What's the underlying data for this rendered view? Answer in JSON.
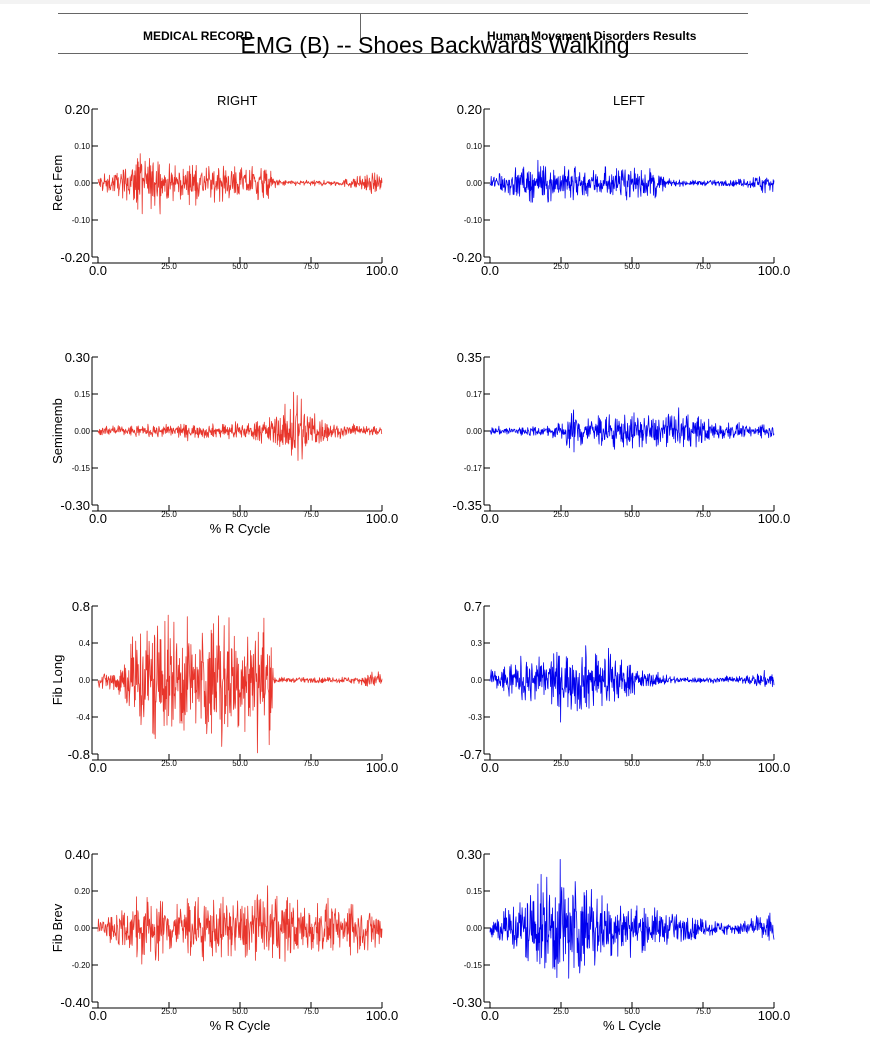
{
  "header": {
    "left_text": "MEDICAL RECORD",
    "right_text": "Human Movement Disorders Results",
    "title": "EMG (B) -- Shoes Backwards Walking"
  },
  "columns": {
    "right": "RIGHT",
    "left": "LEFT"
  },
  "colors": {
    "right": "#e8352b",
    "left": "#0000ee"
  },
  "chart_data": [
    {
      "type": "line",
      "side": "RIGHT",
      "ylabel": "Rect Fem",
      "xlabel": "",
      "xlim": [
        0,
        100
      ],
      "ylim": [
        -0.2,
        0.2
      ],
      "xticks": [
        "0.0",
        "25.0",
        "50.0",
        "75.0",
        "100.0"
      ],
      "yticks": [
        "0.20",
        "0.10",
        "0.00",
        "-0.10",
        "-0.20"
      ],
      "envelope_x": [
        0,
        5,
        10,
        15,
        20,
        25,
        30,
        35,
        40,
        45,
        50,
        55,
        60,
        63,
        70,
        75,
        80,
        85,
        88,
        92,
        96,
        100
      ],
      "envelope_amp": [
        0.025,
        0.03,
        0.045,
        0.1,
        0.07,
        0.05,
        0.045,
        0.05,
        0.05,
        0.045,
        0.045,
        0.05,
        0.045,
        0.01,
        0.008,
        0.008,
        0.008,
        0.008,
        0.015,
        0.02,
        0.03,
        0.025
      ]
    },
    {
      "type": "line",
      "side": "LEFT",
      "ylabel": "",
      "xlabel": "",
      "xlim": [
        0,
        100
      ],
      "ylim": [
        -0.2,
        0.2
      ],
      "xticks": [
        "0.0",
        "25.0",
        "50.0",
        "75.0",
        "100.0"
      ],
      "yticks": [
        "0.20",
        "0.10",
        "0.00",
        "-0.10",
        "-0.20"
      ],
      "envelope_x": [
        0,
        5,
        10,
        15,
        20,
        25,
        30,
        35,
        40,
        45,
        50,
        55,
        58,
        62,
        70,
        75,
        80,
        85,
        88,
        92,
        96,
        100
      ],
      "envelope_amp": [
        0.025,
        0.035,
        0.045,
        0.05,
        0.055,
        0.045,
        0.05,
        0.04,
        0.045,
        0.04,
        0.045,
        0.04,
        0.05,
        0.01,
        0.008,
        0.008,
        0.008,
        0.008,
        0.012,
        0.015,
        0.03,
        0.03
      ]
    },
    {
      "type": "line",
      "side": "RIGHT",
      "ylabel": "Semimemb",
      "xlabel": "% R Cycle",
      "xlim": [
        0,
        100
      ],
      "ylim": [
        -0.3,
        0.3
      ],
      "xticks": [
        "0.0",
        "25.0",
        "50.0",
        "75.0",
        "100.0"
      ],
      "yticks": [
        "0.30",
        "0.15",
        "0.00",
        "-0.15",
        "-0.30"
      ],
      "envelope_x": [
        0,
        10,
        20,
        25,
        30,
        40,
        45,
        50,
        55,
        60,
        65,
        68,
        70,
        72,
        75,
        80,
        85,
        90,
        95,
        100
      ],
      "envelope_amp": [
        0.02,
        0.025,
        0.025,
        0.03,
        0.03,
        0.03,
        0.035,
        0.03,
        0.04,
        0.06,
        0.08,
        0.13,
        0.22,
        0.15,
        0.1,
        0.05,
        0.03,
        0.025,
        0.02,
        0.02
      ]
    },
    {
      "type": "line",
      "side": "LEFT",
      "ylabel": "",
      "xlabel": "",
      "xlim": [
        0,
        100
      ],
      "ylim": [
        -0.35,
        0.35
      ],
      "xticks": [
        "0.0",
        "25.0",
        "50.0",
        "75.0",
        "100.0"
      ],
      "yticks": [
        "0.35",
        "0.17",
        "0.00",
        "-0.17",
        "-0.35"
      ],
      "envelope_x": [
        0,
        10,
        20,
        25,
        28,
        30,
        32,
        35,
        40,
        45,
        50,
        55,
        60,
        65,
        70,
        75,
        80,
        85,
        90,
        95,
        100
      ],
      "envelope_amp": [
        0.02,
        0.025,
        0.025,
        0.05,
        0.08,
        0.14,
        0.1,
        0.07,
        0.08,
        0.09,
        0.09,
        0.08,
        0.08,
        0.09,
        0.08,
        0.07,
        0.05,
        0.04,
        0.03,
        0.03,
        0.03
      ]
    },
    {
      "type": "line",
      "side": "RIGHT",
      "ylabel": "Fib Long",
      "xlabel": "",
      "xlim": [
        0,
        100
      ],
      "ylim": [
        -0.8,
        0.8
      ],
      "xticks": [
        "0.0",
        "25.0",
        "50.0",
        "75.0",
        "100.0"
      ],
      "yticks": [
        "0.8",
        "0.4",
        "0.0",
        "-0.4",
        "-0.8"
      ],
      "envelope_x": [
        0,
        5,
        10,
        15,
        20,
        25,
        30,
        35,
        40,
        45,
        50,
        55,
        60,
        62,
        65,
        70,
        80,
        90,
        95,
        100
      ],
      "envelope_amp": [
        0.08,
        0.12,
        0.35,
        0.7,
        0.8,
        0.65,
        0.7,
        0.55,
        0.75,
        0.8,
        0.55,
        0.65,
        0.75,
        0.05,
        0.03,
        0.03,
        0.03,
        0.04,
        0.09,
        0.1
      ]
    },
    {
      "type": "line",
      "side": "LEFT",
      "ylabel": "",
      "xlabel": "",
      "xlim": [
        0,
        100
      ],
      "ylim": [
        -0.7,
        0.7
      ],
      "xticks": [
        "0.0",
        "25.0",
        "50.0",
        "75.0",
        "100.0"
      ],
      "yticks": [
        "0.7",
        "0.3",
        "0.0",
        "-0.3",
        "-0.7"
      ],
      "envelope_x": [
        0,
        5,
        10,
        15,
        20,
        25,
        30,
        35,
        40,
        45,
        50,
        55,
        60,
        65,
        70,
        80,
        90,
        95,
        100
      ],
      "envelope_amp": [
        0.1,
        0.15,
        0.2,
        0.22,
        0.25,
        0.3,
        0.3,
        0.35,
        0.25,
        0.25,
        0.15,
        0.08,
        0.06,
        0.04,
        0.03,
        0.03,
        0.04,
        0.08,
        0.1
      ]
    },
    {
      "type": "line",
      "side": "RIGHT",
      "ylabel": "Fib Brev",
      "xlabel": "% R Cycle",
      "xlim": [
        0,
        100
      ],
      "ylim": [
        -0.4,
        0.4
      ],
      "xticks": [
        "0.0",
        "25.0",
        "50.0",
        "75.0",
        "100.0"
      ],
      "yticks": [
        "0.40",
        "0.20",
        "0.00",
        "-0.20",
        "-0.40"
      ],
      "envelope_x": [
        0,
        10,
        15,
        20,
        25,
        30,
        35,
        40,
        45,
        50,
        55,
        60,
        65,
        70,
        75,
        80,
        85,
        90,
        95,
        100
      ],
      "envelope_amp": [
        0.08,
        0.12,
        0.22,
        0.18,
        0.17,
        0.16,
        0.18,
        0.18,
        0.17,
        0.16,
        0.2,
        0.18,
        0.18,
        0.17,
        0.15,
        0.14,
        0.13,
        0.13,
        0.12,
        0.12
      ]
    },
    {
      "type": "line",
      "side": "LEFT",
      "ylabel": "",
      "xlabel": "% L Cycle",
      "xlim": [
        0,
        100
      ],
      "ylim": [
        -0.3,
        0.3
      ],
      "xticks": [
        "0.0",
        "25.0",
        "50.0",
        "75.0",
        "100.0"
      ],
      "yticks": [
        "0.30",
        "0.15",
        "0.00",
        "-0.15",
        "-0.30"
      ],
      "envelope_x": [
        0,
        5,
        10,
        15,
        20,
        25,
        30,
        35,
        40,
        45,
        50,
        55,
        60,
        65,
        70,
        75,
        80,
        85,
        90,
        95,
        100
      ],
      "envelope_amp": [
        0.05,
        0.08,
        0.14,
        0.18,
        0.22,
        0.27,
        0.23,
        0.18,
        0.14,
        0.12,
        0.1,
        0.09,
        0.08,
        0.06,
        0.05,
        0.04,
        0.03,
        0.03,
        0.03,
        0.06,
        0.08
      ]
    }
  ]
}
